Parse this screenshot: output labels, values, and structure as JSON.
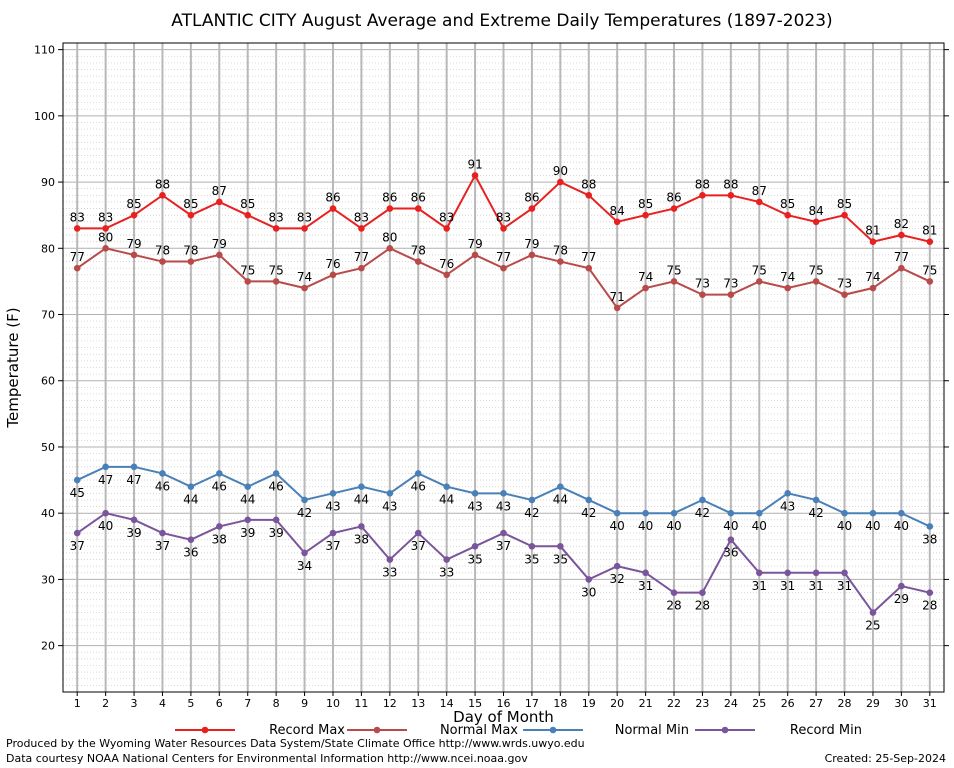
{
  "chart_data": {
    "type": "line",
    "title": "ATLANTIC CITY August Average and Extreme Daily Temperatures (1897-2023)",
    "xlabel": "Day of Month",
    "ylabel": "Temperature (F)",
    "xlim": [
      0.5,
      31.5
    ],
    "ylim": [
      13,
      111
    ],
    "y_ticks": [
      20,
      30,
      40,
      50,
      60,
      70,
      80,
      90,
      100,
      110
    ],
    "x": [
      1,
      2,
      3,
      4,
      5,
      6,
      7,
      8,
      9,
      10,
      11,
      12,
      13,
      14,
      15,
      16,
      17,
      18,
      19,
      20,
      21,
      22,
      23,
      24,
      25,
      26,
      27,
      28,
      29,
      30,
      31
    ],
    "grid": true,
    "legend_position": "bottom",
    "series": [
      {
        "name": "Record Max",
        "color": "#e82020",
        "values": [
          83,
          83,
          85,
          88,
          85,
          87,
          85,
          83,
          83,
          86,
          83,
          86,
          86,
          83,
          91,
          83,
          86,
          90,
          88,
          84,
          85,
          86,
          88,
          88,
          87,
          85,
          84,
          85,
          81,
          82,
          81
        ]
      },
      {
        "name": "Normal Max",
        "color": "#b84a4a",
        "values": [
          77,
          80,
          79,
          78,
          78,
          79,
          75,
          75,
          74,
          76,
          77,
          80,
          78,
          76,
          79,
          77,
          79,
          78,
          77,
          71,
          74,
          75,
          73,
          73,
          75,
          74,
          75,
          73,
          74,
          77,
          75
        ]
      },
      {
        "name": "Normal Min",
        "color": "#4a80b8",
        "values": [
          45,
          47,
          47,
          46,
          44,
          46,
          44,
          46,
          42,
          43,
          44,
          43,
          46,
          44,
          43,
          43,
          42,
          44,
          42,
          40,
          40,
          40,
          42,
          40,
          40,
          43,
          42,
          40,
          40,
          40,
          38
        ]
      },
      {
        "name": "Record Min",
        "color": "#7b559b",
        "values": [
          37,
          40,
          39,
          37,
          36,
          38,
          39,
          39,
          34,
          37,
          38,
          33,
          37,
          33,
          35,
          37,
          35,
          35,
          30,
          32,
          31,
          28,
          28,
          36,
          31,
          31,
          31,
          31,
          25,
          29,
          28
        ]
      }
    ]
  },
  "footer": {
    "produced_by": "Produced by the Wyoming Water Resources Data System/State Climate Office http://www.wrds.uwyo.edu",
    "courtesy": "Data courtesy NOAA National Centers for Environmental Information http://www.ncei.noaa.gov",
    "created": "Created:  25-Sep-2024"
  }
}
